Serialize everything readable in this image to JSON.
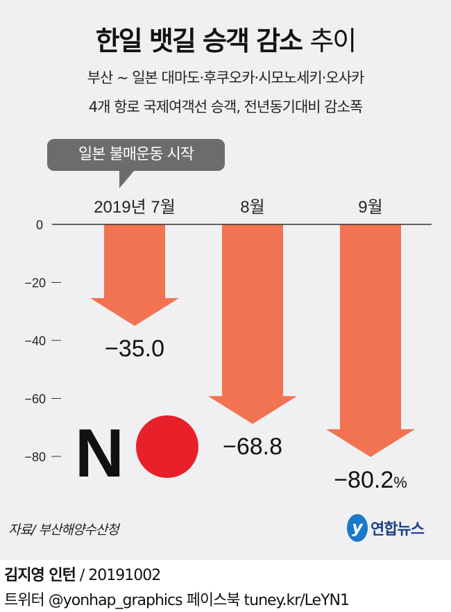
{
  "title": {
    "bold": "한일 뱃길 승객 감소",
    "light": "추이"
  },
  "subtitle": [
    "부산 ~ 일본 대마도·후쿠오카·시모노세키·오사카",
    "4개 항로 국제여객선 승객, 전년동기대비 감소폭"
  ],
  "annotation": "일본 불매운동 시작",
  "chart_data": {
    "type": "bar",
    "categories": [
      "2019년 7월",
      "8월",
      "9월"
    ],
    "values": [
      -35.0,
      -68.8,
      -80.2
    ],
    "value_labels": [
      "−35.0",
      "−68.8",
      "−80.2"
    ],
    "unit": "%",
    "ylim": [
      -80,
      0
    ],
    "yticks": [
      0,
      -20,
      -40,
      -60,
      -80
    ],
    "ytick_labels": [
      "0",
      "−20",
      "−40",
      "−60",
      "−80"
    ],
    "bar_color": "#f27352",
    "xlabel": "",
    "ylabel": ""
  },
  "no_logo": {
    "text": "N",
    "circle_color": "#e8202a"
  },
  "source": "자료/ 부산해양수산청",
  "logo": {
    "mark": "y",
    "text": "연합뉴스"
  },
  "credit": {
    "name": "김지영 인턴",
    "date": "/ 20191002"
  },
  "social": "트위터 @yonhap_graphics  페이스북 tuney.kr/LeYN1"
}
